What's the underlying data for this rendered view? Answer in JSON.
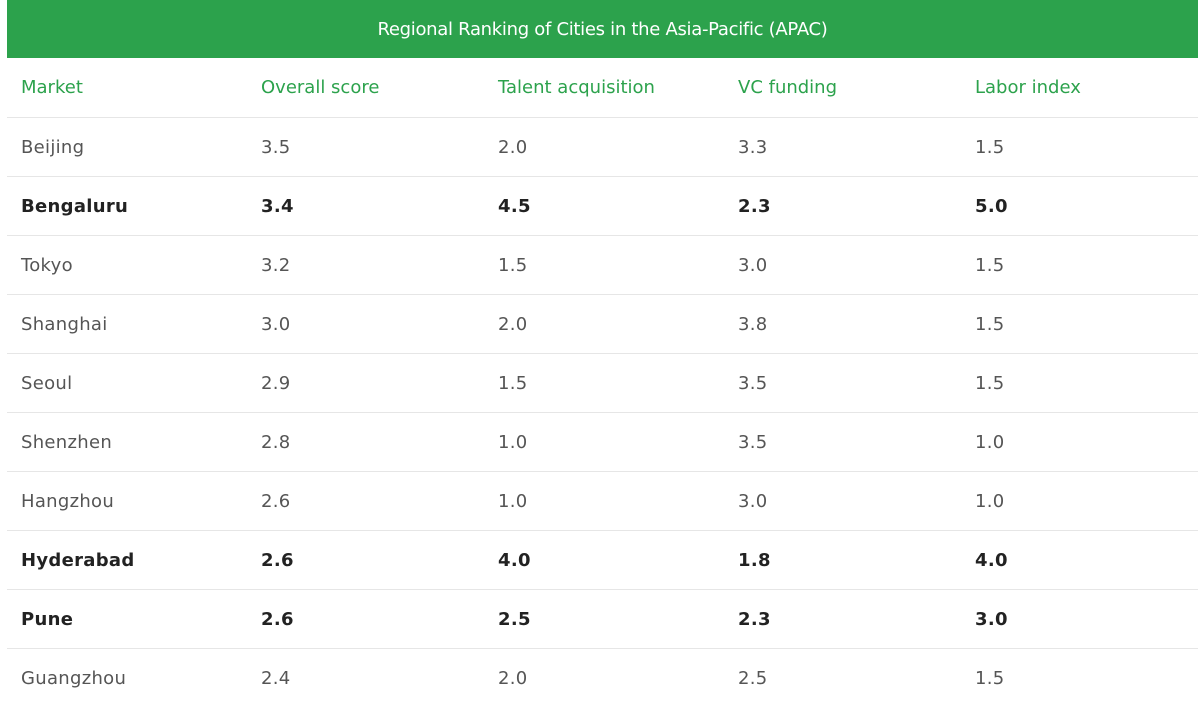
{
  "colors": {
    "header_bg": "#2ca24c",
    "header_text": "#ffffff",
    "column_header_text": "#2ca24c",
    "body_text": "#555555",
    "highlight_text": "#222222",
    "row_divider": "#e6e6e6"
  },
  "chart_data": {
    "type": "table",
    "title": "Regional Ranking of Cities in the Asia-Pacific (APAC)",
    "columns": [
      "Market",
      "Overall score",
      "Talent acquisition",
      "VC funding",
      "Labor index"
    ],
    "rows": [
      {
        "market": "Beijing",
        "overall": "3.5",
        "talent": "2.0",
        "vc": "3.3",
        "labor": "1.5",
        "bold": false
      },
      {
        "market": "Bengaluru",
        "overall": "3.4",
        "talent": "4.5",
        "vc": "2.3",
        "labor": "5.0",
        "bold": true
      },
      {
        "market": "Tokyo",
        "overall": "3.2",
        "talent": "1.5",
        "vc": "3.0",
        "labor": "1.5",
        "bold": false
      },
      {
        "market": "Shanghai",
        "overall": "3.0",
        "talent": "2.0",
        "vc": "3.8",
        "labor": "1.5",
        "bold": false
      },
      {
        "market": "Seoul",
        "overall": "2.9",
        "talent": "1.5",
        "vc": "3.5",
        "labor": "1.5",
        "bold": false
      },
      {
        "market": "Shenzhen",
        "overall": "2.8",
        "talent": "1.0",
        "vc": "3.5",
        "labor": "1.0",
        "bold": false
      },
      {
        "market": "Hangzhou",
        "overall": "2.6",
        "talent": "1.0",
        "vc": "3.0",
        "labor": "1.0",
        "bold": false
      },
      {
        "market": "Hyderabad",
        "overall": "2.6",
        "talent": "4.0",
        "vc": "1.8",
        "labor": "4.0",
        "bold": true
      },
      {
        "market": "Pune",
        "overall": "2.6",
        "talent": "2.5",
        "vc": "2.3",
        "labor": "3.0",
        "bold": true
      },
      {
        "market": "Guangzhou",
        "overall": "2.4",
        "talent": "2.0",
        "vc": "2.5",
        "labor": "1.5",
        "bold": false
      }
    ]
  }
}
